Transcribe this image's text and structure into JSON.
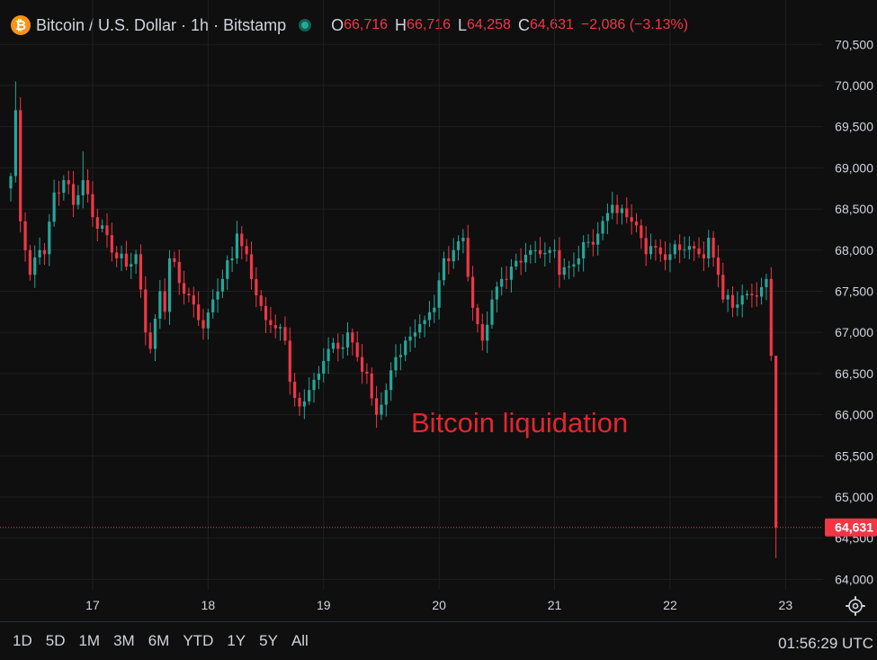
{
  "header": {
    "logo_glyph": "₿",
    "symbol_title": "Bitcoin / U.S. Dollar · 1h · Bitstamp",
    "ohlc": [
      {
        "key": "O",
        "value": "66,716"
      },
      {
        "key": "H",
        "value": "66,716"
      },
      {
        "key": "L",
        "value": "64,258"
      },
      {
        "key": "C",
        "value": "64,631"
      }
    ],
    "change": "−2,086 (−3.13%)"
  },
  "bottom": {
    "ranges": [
      "1D",
      "5D",
      "1M",
      "3M",
      "6M",
      "YTD",
      "1Y",
      "5Y",
      "All"
    ],
    "clock": "01:56:29 UTC"
  },
  "colors": {
    "up": "#26a69a",
    "down": "#f23645",
    "background": "#0f0f0f",
    "grid": "#1f1f1f",
    "text": "#d1d4dc"
  },
  "icons": {
    "logo": "bitcoin-icon",
    "status": "market-status-dot-icon",
    "settings": "gear-icon"
  },
  "chart_data": {
    "type": "candlestick",
    "timeframe": "1h",
    "annotation": "Bitcoin liquidation",
    "last_price": 64631,
    "last_price_label": "64,631",
    "y_range": [
      63600,
      70700
    ],
    "y_ticks": [
      {
        "value": 64000,
        "label": "64,000"
      },
      {
        "value": 64500,
        "label": "64,500"
      },
      {
        "value": 65000,
        "label": "65,000"
      },
      {
        "value": 65500,
        "label": "65,500"
      },
      {
        "value": 66000,
        "label": "66,000"
      },
      {
        "value": 66500,
        "label": "66,500"
      },
      {
        "value": 67000,
        "label": "67,000"
      },
      {
        "value": 67500,
        "label": "67,500"
      },
      {
        "value": 68000,
        "label": "68,000"
      },
      {
        "value": 68500,
        "label": "68,500"
      },
      {
        "value": 69000,
        "label": "69,000"
      },
      {
        "value": 69500,
        "label": "69,500"
      },
      {
        "value": 70000,
        "label": "70,000"
      },
      {
        "value": 70500,
        "label": "70,500"
      }
    ],
    "x_ticks": [
      {
        "index": 17,
        "label": "17"
      },
      {
        "index": 41,
        "label": "18"
      },
      {
        "index": 65,
        "label": "19"
      },
      {
        "index": 89,
        "label": "20"
      },
      {
        "index": 113,
        "label": "21"
      },
      {
        "index": 137,
        "label": "22"
      },
      {
        "index": 161,
        "label": "23"
      }
    ],
    "keypoints": [
      [
        0,
        68900
      ],
      [
        1,
        69700
      ],
      [
        2,
        68350
      ],
      [
        4,
        67700
      ],
      [
        6,
        68000
      ],
      [
        7,
        67950
      ],
      [
        9,
        68700
      ],
      [
        11,
        68850
      ],
      [
        13,
        68550
      ],
      [
        15,
        68850
      ],
      [
        17,
        68400
      ],
      [
        19,
        68300
      ],
      [
        22,
        67900
      ],
      [
        24,
        67800
      ],
      [
        26,
        67950
      ],
      [
        28,
        67000
      ],
      [
        29,
        66800
      ],
      [
        31,
        67500
      ],
      [
        32,
        67250
      ],
      [
        33,
        67900
      ],
      [
        35,
        67600
      ],
      [
        37,
        67450
      ],
      [
        39,
        67150
      ],
      [
        40,
        67050
      ],
      [
        42,
        67400
      ],
      [
        44,
        67650
      ],
      [
        46,
        67900
      ],
      [
        47,
        68200
      ],
      [
        49,
        67950
      ],
      [
        51,
        67450
      ],
      [
        53,
        67150
      ],
      [
        55,
        67050
      ],
      [
        57,
        66900
      ],
      [
        58,
        66400
      ],
      [
        60,
        66100
      ],
      [
        62,
        66300
      ],
      [
        64,
        66500
      ],
      [
        66,
        66800
      ],
      [
        68,
        66800
      ],
      [
        70,
        67000
      ],
      [
        72,
        66700
      ],
      [
        74,
        66500
      ],
      [
        75,
        66200
      ],
      [
        76,
        66000
      ],
      [
        78,
        66300
      ],
      [
        80,
        66700
      ],
      [
        82,
        66900
      ],
      [
        84,
        67000
      ],
      [
        86,
        67150
      ],
      [
        88,
        67300
      ],
      [
        90,
        67900
      ],
      [
        92,
        68000
      ],
      [
        94,
        68150
      ],
      [
        96,
        67300
      ],
      [
        97,
        67100
      ],
      [
        98,
        66900
      ],
      [
        100,
        67400
      ],
      [
        102,
        67650
      ],
      [
        104,
        67800
      ],
      [
        106,
        67850
      ],
      [
        108,
        68000
      ],
      [
        110,
        67950
      ],
      [
        112,
        68000
      ],
      [
        113,
        68000
      ],
      [
        114,
        67700
      ],
      [
        116,
        67800
      ],
      [
        118,
        67900
      ],
      [
        120,
        68100
      ],
      [
        122,
        68200
      ],
      [
        124,
        68450
      ],
      [
        125,
        68550
      ],
      [
        126,
        68450
      ],
      [
        128,
        68400
      ],
      [
        130,
        68300
      ],
      [
        132,
        67950
      ],
      [
        133,
        68050
      ],
      [
        135,
        67950
      ],
      [
        137,
        67950
      ],
      [
        139,
        68000
      ],
      [
        141,
        68050
      ],
      [
        143,
        67950
      ],
      [
        144,
        67900
      ],
      [
        145,
        68150
      ],
      [
        147,
        67700
      ],
      [
        148,
        67400
      ],
      [
        150,
        67300
      ],
      [
        152,
        67450
      ],
      [
        154,
        67450
      ],
      [
        156,
        67550
      ],
      [
        157,
        67650
      ],
      [
        158,
        66716
      ],
      [
        159,
        64631
      ]
    ]
  }
}
